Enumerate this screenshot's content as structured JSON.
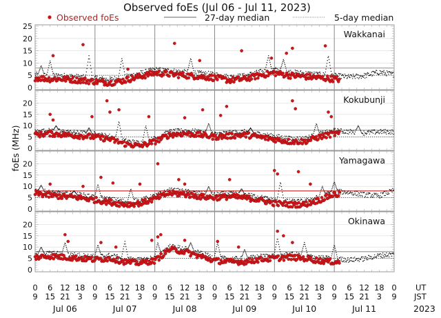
{
  "chart_data": {
    "type": "scatter",
    "title": "Observed foEs (Jul 06 - Jul 11, 2023)",
    "ylabel": "foEs (MHz)",
    "ylim": [
      0,
      25
    ],
    "yticks": [
      0,
      5,
      10,
      15,
      20,
      25
    ],
    "legend": {
      "placement": "top",
      "entries": [
        {
          "label": "Observed foEs",
          "style": "red-dot"
        },
        {
          "label": "27-day median",
          "style": "solid-line"
        },
        {
          "label": "5-day median",
          "style": "dotted-line"
        }
      ]
    },
    "x_axis": {
      "ut_label": "UT",
      "jst_label": "JST",
      "ut_ticks": [
        "0",
        "6",
        "12",
        "18",
        "0",
        "6",
        "12",
        "18",
        "0",
        "6",
        "12",
        "18",
        "0",
        "6",
        "12",
        "18",
        "0",
        "6",
        "12",
        "18",
        "0",
        "6",
        "12",
        "18",
        "0"
      ],
      "jst_ticks": [
        "9",
        "15",
        "21",
        "3",
        "9",
        "15",
        "21",
        "3",
        "9",
        "15",
        "21",
        "3",
        "9",
        "15",
        "21",
        "3",
        "9",
        "15",
        "21",
        "3",
        "9",
        "15",
        "21",
        "3",
        "9"
      ],
      "days": [
        "Jul 06",
        "Jul 07",
        "Jul 08",
        "Jul 09",
        "Jul 10",
        "Jul 11"
      ],
      "year": "2023"
    },
    "observed_until_day": 5.1,
    "reference_lines": {
      "upper_mhz": 8,
      "lower_mhz": 5
    },
    "panels": [
      {
        "station": "Wakkanai",
        "upper_line_color": "#aaaaaa",
        "lower_line_color": "#444444",
        "spikes": [
          [
            0.1,
            9
          ],
          [
            0.25,
            11
          ],
          [
            0.9,
            13
          ],
          [
            1.45,
            12
          ],
          [
            2.6,
            12
          ],
          [
            3.9,
            13
          ],
          [
            4.15,
            11.5
          ],
          [
            4.9,
            13
          ]
        ],
        "outliers": [
          [
            0.3,
            13
          ],
          [
            0.8,
            17.5
          ],
          [
            1.55,
            7.5
          ],
          [
            2.33,
            18
          ],
          [
            2.75,
            11
          ],
          [
            3.45,
            15
          ],
          [
            3.95,
            12
          ],
          [
            4.2,
            14
          ],
          [
            4.3,
            16
          ],
          [
            4.85,
            17
          ]
        ],
        "base_profile": [
          4,
          3.5,
          3.5,
          3,
          2.5,
          2,
          3,
          4.5,
          6,
          5.5,
          5,
          4.5,
          4,
          3,
          3.5,
          5,
          6,
          5,
          4.5,
          4,
          3.5,
          3,
          3.5,
          5
        ]
      },
      {
        "station": "Kokubunji",
        "upper_line_color": "#aaaaaa",
        "lower_line_color": "#444444",
        "spikes": [
          [
            0.35,
            10
          ],
          [
            0.9,
            9
          ],
          [
            1.4,
            12
          ],
          [
            1.85,
            10
          ],
          [
            2.9,
            11
          ],
          [
            3.6,
            9
          ],
          [
            4.7,
            11
          ],
          [
            5.4,
            10
          ]
        ],
        "outliers": [
          [
            0.25,
            15
          ],
          [
            0.3,
            12.5
          ],
          [
            0.95,
            14
          ],
          [
            1.2,
            21
          ],
          [
            1.25,
            16
          ],
          [
            1.4,
            17
          ],
          [
            1.9,
            14
          ],
          [
            2.5,
            13.5
          ],
          [
            2.8,
            17
          ],
          [
            3.1,
            14.5
          ],
          [
            3.2,
            18.5
          ],
          [
            4.3,
            21
          ],
          [
            4.35,
            17.5
          ],
          [
            4.9,
            16
          ],
          [
            4.95,
            14
          ]
        ],
        "base_profile": [
          6,
          6.5,
          6,
          5.5,
          5,
          4,
          2,
          1,
          3,
          6,
          6.5,
          6,
          5,
          5.5,
          6,
          5,
          4,
          3,
          3,
          5,
          6.5,
          6,
          5.5,
          6
        ]
      },
      {
        "station": "Yamagawa",
        "upper_line_color": "#cc5555",
        "lower_line_color": "#555555",
        "spikes": [
          [
            0.1,
            10.5
          ],
          [
            0.65,
            8
          ],
          [
            1.05,
            11
          ],
          [
            1.6,
            9
          ],
          [
            2.9,
            10
          ],
          [
            3.45,
            9
          ],
          [
            4.1,
            12
          ],
          [
            4.8,
            10
          ],
          [
            5.0,
            12
          ]
        ],
        "outliers": [
          [
            0.25,
            11
          ],
          [
            0.8,
            10
          ],
          [
            1.1,
            14
          ],
          [
            1.3,
            11.5
          ],
          [
            1.75,
            11
          ],
          [
            2.05,
            20
          ],
          [
            2.4,
            13
          ],
          [
            2.5,
            11
          ],
          [
            3.25,
            13
          ],
          [
            4.0,
            17
          ],
          [
            4.05,
            15.5
          ],
          [
            4.4,
            16.5
          ],
          [
            4.6,
            11
          ]
        ],
        "base_profile": [
          7,
          6,
          5.5,
          5,
          4,
          3,
          2,
          2.5,
          4.5,
          7,
          6.5,
          5.5,
          5,
          5.5,
          5,
          4,
          2.5,
          2,
          2,
          4,
          6.5,
          6,
          5,
          4.5
        ]
      },
      {
        "station": "Okinawa",
        "upper_line_color": "#aaaaaa",
        "lower_line_color": "#444444",
        "spikes": [
          [
            0.1,
            10
          ],
          [
            0.5,
            12
          ],
          [
            1.05,
            11
          ],
          [
            1.5,
            12.5
          ],
          [
            2.05,
            12
          ],
          [
            2.6,
            12
          ],
          [
            3.05,
            12
          ],
          [
            3.5,
            9
          ],
          [
            4.05,
            14
          ],
          [
            4.5,
            12
          ],
          [
            5.0,
            11
          ]
        ],
        "outliers": [
          [
            0.5,
            15.5
          ],
          [
            0.55,
            12.5
          ],
          [
            1.1,
            12
          ],
          [
            1.35,
            10
          ],
          [
            1.95,
            13
          ],
          [
            2.05,
            14.5
          ],
          [
            2.1,
            15.5
          ],
          [
            2.5,
            13
          ],
          [
            3.05,
            12.5
          ],
          [
            3.4,
            10
          ],
          [
            4.05,
            17
          ],
          [
            4.15,
            15
          ],
          [
            4.3,
            12
          ]
        ],
        "base_profile": [
          5.5,
          6,
          5.5,
          5,
          4.5,
          5,
          3.5,
          3,
          4,
          9,
          8,
          6,
          4,
          3.5,
          3.5,
          4.5,
          5,
          5.5,
          5,
          4,
          3.5,
          3,
          3.5,
          5
        ]
      }
    ]
  }
}
